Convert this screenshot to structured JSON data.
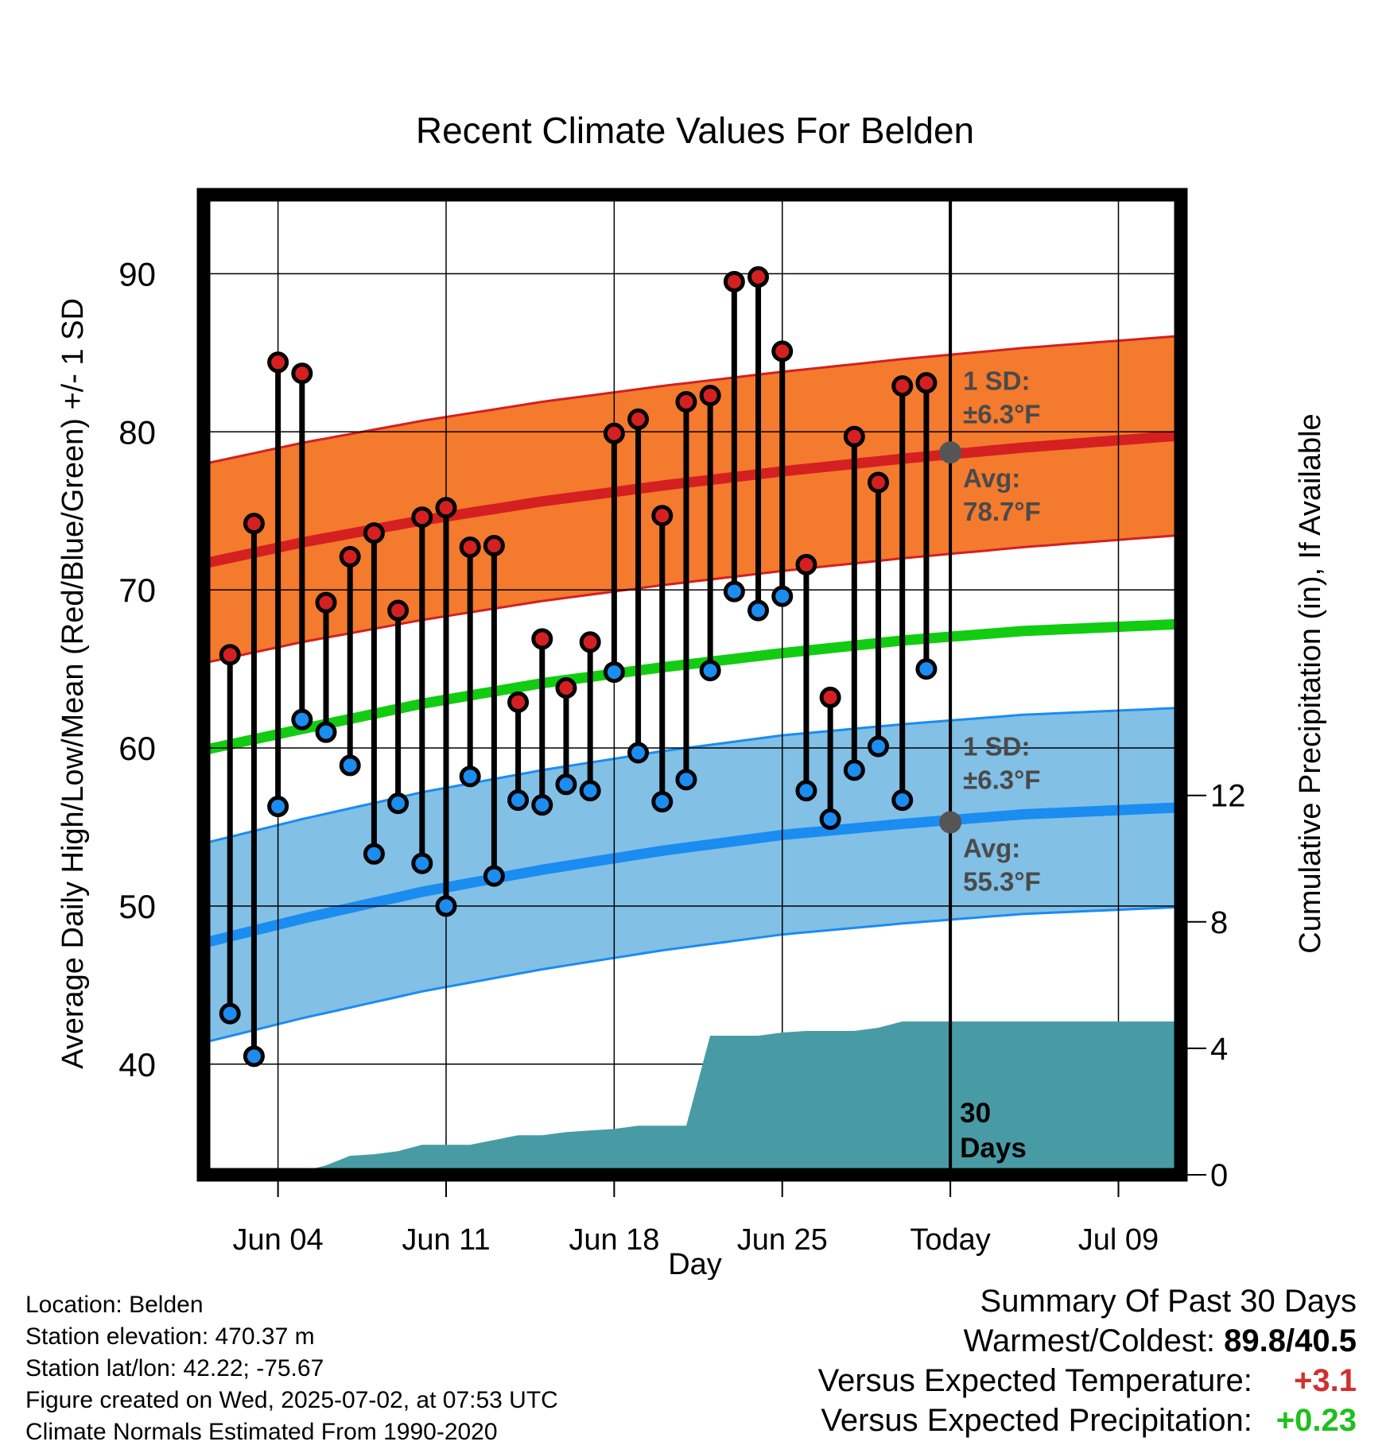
{
  "chart_data": {
    "type": "line",
    "title": "Recent Climate Values For Belden",
    "xlabel": "Day",
    "ylabel": "Average Daily High/Low/Mean (Red/Blue/Green) +/- 1 SD",
    "y2label": "Cumulative Precipitation (in), If Available",
    "x_ticks": [
      "Jun 04",
      "Jun 11",
      "Jun 18",
      "Jun 25",
      "Today",
      "Jul 09"
    ],
    "x_tick_days": [
      4,
      11,
      18,
      25,
      32,
      39
    ],
    "x_range": [
      0.9,
      41.6
    ],
    "ylim": [
      33,
      95
    ],
    "y_ticks": [
      40,
      50,
      60,
      70,
      80,
      90
    ],
    "y2lim": [
      0,
      31
    ],
    "y2_ticks": [
      0,
      4,
      8,
      12
    ],
    "days": [
      2,
      3,
      4,
      5,
      6,
      7,
      8,
      9,
      10,
      11,
      12,
      13,
      14,
      15,
      16,
      17,
      18,
      19,
      20,
      21,
      22,
      23,
      24,
      25,
      26,
      27,
      28,
      29,
      30,
      31
    ],
    "highs": [
      65.9,
      74.2,
      84.4,
      83.7,
      69.2,
      72.1,
      73.6,
      68.7,
      74.6,
      75.2,
      72.7,
      72.8,
      62.9,
      66.9,
      63.8,
      66.7,
      79.9,
      80.8,
      74.7,
      81.9,
      82.3,
      89.5,
      89.8,
      85.1,
      71.6,
      63.2,
      79.7,
      76.8,
      82.9,
      83.1
    ],
    "lows": [
      43.2,
      40.5,
      56.3,
      61.8,
      61.0,
      58.9,
      53.3,
      56.5,
      52.7,
      50.0,
      58.2,
      51.9,
      56.7,
      56.4,
      57.7,
      57.3,
      64.8,
      59.7,
      56.6,
      58.0,
      64.9,
      69.9,
      68.7,
      69.6,
      57.3,
      55.5,
      58.6,
      60.1,
      56.7,
      65.0
    ],
    "normal_days": [
      1,
      5,
      10,
      15,
      20,
      25,
      30,
      35,
      41
    ],
    "normal_high": [
      71.7,
      73.0,
      74.4,
      75.6,
      76.6,
      77.5,
      78.3,
      79.0,
      79.7
    ],
    "normal_low": [
      47.7,
      49.2,
      50.9,
      52.3,
      53.5,
      54.5,
      55.2,
      55.8,
      56.2
    ],
    "normal_mean": [
      59.9,
      61.2,
      62.8,
      64.1,
      65.1,
      66.0,
      66.8,
      67.4,
      67.8
    ],
    "sd": 6.3,
    "precip_days": [
      5,
      6,
      7,
      8,
      9,
      10,
      11,
      12,
      13,
      14,
      15,
      16,
      17,
      18,
      19,
      20,
      21,
      22,
      23,
      24,
      25,
      26,
      27,
      28,
      29,
      30,
      31,
      32
    ],
    "precip_cum": [
      0.1,
      0.3,
      0.6,
      0.65,
      0.75,
      0.95,
      0.95,
      0.95,
      1.1,
      1.25,
      1.25,
      1.35,
      1.4,
      1.45,
      1.55,
      1.55,
      1.55,
      4.4,
      4.4,
      4.4,
      4.5,
      4.55,
      4.55,
      4.55,
      4.65,
      4.85,
      4.85,
      4.85
    ],
    "today_day": 32,
    "today_avg_high": 78.7,
    "today_avg_low": 55.3,
    "annotations": {
      "sd_high_label": [
        "1 SD:",
        "±6.3°F"
      ],
      "avg_high_label": [
        "Avg:",
        "78.7°F"
      ],
      "sd_low_label": [
        "1 SD:",
        "±6.3°F"
      ],
      "avg_low_label": [
        "Avg:",
        "55.3°F"
      ],
      "days_label": [
        "30",
        "Days"
      ]
    },
    "colors": {
      "high_band": "#f47a2e",
      "high_line": "#d42020",
      "low_band": "#82c0e6",
      "low_line": "#1b8cf0",
      "mean_line": "#11cc11",
      "precip": "#489ba4",
      "high_dot": "#d42020",
      "low_dot": "#1b8cf0",
      "marker_gray": "#555555"
    }
  },
  "footer_left": {
    "location": "Location: Belden",
    "elevation": "Station elevation: 470.37 m",
    "latlon": "Station lat/lon: 42.22; -75.67",
    "created": "Figure created on Wed, 2025-07-02, at 07:53 UTC",
    "normals": "Climate Normals Estimated From 1990-2020"
  },
  "footer_right": {
    "heading": "Summary Of Past 30 Days",
    "warmest_label": "Warmest/Coldest:",
    "warmest_value": "89.8/40.5",
    "temp_label": "Versus Expected Temperature:",
    "temp_value": "+3.1",
    "precip_label": "Versus Expected Precipitation:",
    "precip_value": "+0.23"
  }
}
